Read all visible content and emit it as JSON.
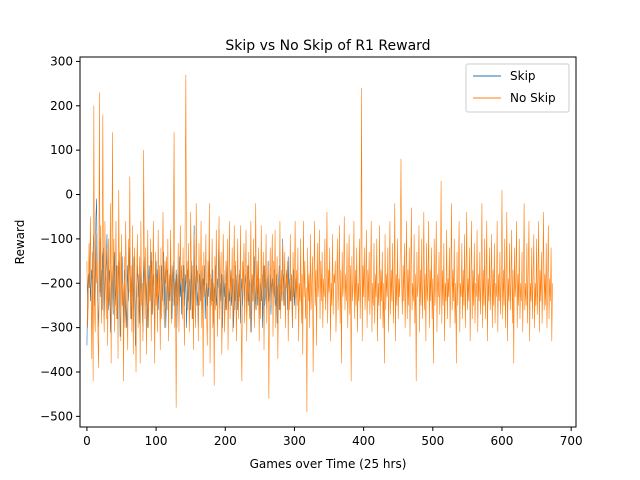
{
  "chart_data": {
    "type": "line",
    "title": "Skip vs No Skip of R1 Reward",
    "xlabel": "Games over Time (25 hrs)",
    "ylabel": "Reward",
    "xlim": [
      -10,
      707
    ],
    "ylim": [
      -524,
      310
    ],
    "xticks": [
      0,
      100,
      200,
      300,
      400,
      500,
      600,
      700
    ],
    "yticks": [
      -500,
      -400,
      -300,
      -200,
      -100,
      0,
      100,
      200,
      300
    ],
    "grid": false,
    "legend_position": "top-right",
    "series": [
      {
        "name": "Skip",
        "color": "#1f77b4",
        "x_start": 0,
        "values": [
          -340,
          -220,
          -180,
          -210,
          -150,
          -240,
          -200,
          -170,
          -230,
          -120,
          -90,
          -250,
          -180,
          -50,
          -10,
          -200,
          -260,
          -300,
          -150,
          -100,
          -230,
          -170,
          -260,
          -140,
          -120,
          -280,
          -200,
          -180,
          -150,
          -90,
          -220,
          -260,
          -170,
          -200,
          -310,
          -240,
          -160,
          -220,
          -270,
          -190,
          -130,
          -250,
          -210,
          -160,
          -280,
          -230,
          -150,
          -200,
          -320,
          -260,
          -180,
          -140,
          -220,
          -290,
          -200,
          -170,
          -250,
          -300,
          -210,
          -160,
          -240,
          -190,
          -120,
          -230,
          -280,
          -200,
          -170,
          -260,
          -140,
          -210,
          -340,
          -250,
          -200,
          -160,
          -230,
          -180,
          -290,
          -220,
          -150,
          -200,
          -260,
          -310,
          -190,
          -140,
          -230,
          -170,
          -250,
          -200,
          -300,
          -220,
          -160,
          -240,
          -190,
          -130,
          -270,
          -210,
          -180,
          -250,
          -300,
          -200,
          -150,
          -230,
          -170,
          -260,
          -210,
          -190,
          -290,
          -220,
          -160,
          -240,
          -200,
          -130,
          -250,
          -180,
          -300,
          -230,
          -170,
          -210,
          -260,
          -190,
          -240,
          -160,
          -220,
          -280,
          -200,
          -150,
          -250,
          -190,
          -230,
          -170,
          -300,
          -210,
          -180,
          -260,
          -140,
          -230,
          -200,
          -270,
          -190,
          -220,
          -160,
          -250,
          -210,
          -180,
          -300,
          -230,
          -170,
          -240,
          -200,
          -190,
          -260,
          -150,
          -230,
          -280,
          -210,
          -70,
          -240,
          -190,
          -160,
          -250,
          -220,
          -300,
          -200,
          -180,
          -240,
          -170,
          -260,
          -210,
          -190,
          -230,
          -160,
          -280,
          -220,
          -200,
          -250,
          -180,
          -230,
          -130,
          -260,
          -210,
          -190,
          -240,
          -170,
          -290,
          -220,
          -200,
          -160,
          -250,
          -230,
          -190,
          -210,
          -80,
          -260,
          -200,
          -240,
          -180,
          -300,
          -220,
          -170,
          -230,
          -200,
          -260,
          -190,
          -150,
          -280,
          -210,
          -240,
          -200,
          -170,
          -250,
          -220,
          -190,
          -300,
          -230,
          -160,
          -240,
          -210,
          -180,
          -260,
          -200,
          -230,
          -170,
          -290,
          -220,
          -190,
          -250,
          -210,
          -130,
          -240,
          -200,
          -180,
          -270,
          -230,
          -160,
          -250,
          -210,
          -190,
          -310,
          -220,
          -180,
          -240,
          -200,
          -140,
          -260,
          -230,
          -190,
          -210,
          -250,
          -170,
          -280,
          -220,
          -200,
          -240,
          -180,
          -300,
          -210,
          -160,
          -250,
          -230,
          -190,
          -260,
          -200,
          -150,
          -240,
          -220,
          -180,
          -270,
          -210,
          -190,
          -240,
          -200,
          -170,
          -250,
          -230,
          -180,
          -290,
          -210,
          -200,
          -160,
          -260,
          -230,
          -190,
          -240,
          -100,
          -210,
          -180,
          -250,
          -220,
          -200,
          -170,
          -260,
          -140,
          -230,
          -190,
          -240,
          -200,
          -180,
          -300,
          -220,
          -170,
          -250,
          -210,
          -190
        ]
      },
      {
        "name": "No Skip",
        "color": "#ff7f0e",
        "x_start": 0,
        "values": [
          -150,
          -300,
          -240,
          -110,
          -210,
          -50,
          -190,
          -370,
          -130,
          -420,
          200,
          -260,
          -310,
          -90,
          -200,
          -150,
          -330,
          -390,
          230,
          -220,
          -70,
          -290,
          -180,
          180,
          -240,
          -310,
          -60,
          -190,
          -280,
          -120,
          -340,
          -100,
          -250,
          -200,
          -20,
          -380,
          -150,
          140,
          -260,
          -100,
          -310,
          -210,
          -60,
          -280,
          -160,
          -370,
          10,
          -220,
          -130,
          -330,
          -90,
          -250,
          -200,
          -420,
          -140,
          -300,
          -60,
          -180,
          -240,
          -350,
          -100,
          -220,
          40,
          -280,
          -160,
          -310,
          -70,
          -360,
          -200,
          -120,
          -260,
          -400,
          -180,
          -90,
          -300,
          -230,
          -140,
          -380,
          -60,
          -250,
          -200,
          -330,
          100,
          -170,
          -280,
          -120,
          -360,
          -220,
          -80,
          -300,
          -190,
          -240,
          -100,
          -330,
          -150,
          -270,
          -60,
          -210,
          -380,
          -130,
          -250,
          -180,
          -310,
          -80,
          -230,
          -160,
          -350,
          -120,
          -280,
          -200,
          -40,
          -240,
          -300,
          -150,
          -200,
          -140,
          -260,
          -100,
          -330,
          -180,
          -220,
          -80,
          -290,
          -160,
          -240,
          -120,
          140,
          -300,
          -200,
          -480,
          -180,
          -250,
          -110,
          -310,
          -230,
          -70,
          -200,
          -160,
          -280,
          -120,
          -250,
          -340,
          -60,
          270,
          -200,
          -150,
          -260,
          -110,
          -310,
          -230,
          -40,
          -190,
          -280,
          -160,
          -350,
          -90,
          -240,
          -300,
          -20,
          -200,
          -170,
          -330,
          -110,
          -250,
          -220,
          -60,
          -300,
          -160,
          -410,
          -130,
          -230,
          -200,
          -90,
          -270,
          -340,
          -150,
          -210,
          -20,
          -380,
          -180,
          -250,
          -100,
          -300,
          -200,
          -430,
          -140,
          -260,
          -80,
          -220,
          -320,
          -160,
          -50,
          -280,
          -200,
          -130,
          -360,
          -240,
          -90,
          -190,
          -310,
          -230,
          -150,
          -260,
          -100,
          -350,
          -200,
          -60,
          -280,
          -170,
          -230,
          -120,
          -310,
          -200,
          -70,
          -260,
          -150,
          -330,
          -210,
          -100,
          -280,
          -180,
          -240,
          -70,
          -300,
          -420,
          -150,
          -220,
          -110,
          -290,
          -200,
          -80,
          -330,
          -160,
          -240,
          -130,
          -280,
          -200,
          -60,
          -310,
          -180,
          -240,
          -100,
          -300,
          -200,
          -20,
          -260,
          -150,
          -230,
          -120,
          -330,
          -190,
          -280,
          -70,
          -240,
          -200,
          -130,
          -350,
          -160,
          -210,
          -90,
          -290,
          -200,
          -160,
          -460,
          -220,
          -120,
          -250,
          -180,
          -90,
          -320,
          -150,
          -230,
          -80,
          -300,
          -210,
          -140,
          -370,
          -200,
          -260,
          -60,
          -280,
          -170,
          -220,
          -110,
          -250,
          -200,
          -130,
          -300,
          -180,
          -210,
          -150,
          -330,
          -200,
          -260,
          -90,
          -240,
          -180,
          -300,
          -130,
          -230,
          -200,
          -60,
          -280,
          -170,
          -250,
          -120,
          -330,
          -200,
          -240,
          -100,
          -290,
          -180,
          -360,
          -60,
          -230,
          -150,
          -280,
          -210,
          -490,
          -120,
          -240,
          -180,
          -300,
          -90,
          -260,
          -200,
          -140,
          -400,
          -220,
          -60,
          -250,
          -170,
          -340,
          -110,
          -230,
          -200,
          -80,
          -280,
          -150,
          -240,
          -130,
          -300,
          -190,
          -230,
          -100,
          -260,
          -200,
          -40,
          -290,
          -170,
          -220,
          -120,
          -330,
          -200,
          -250,
          -90,
          -270,
          -180,
          -200,
          -150,
          -310,
          -230,
          -100,
          -260,
          -200,
          -70,
          -290,
          -170,
          -380,
          -130,
          -230,
          -200,
          -50,
          -260,
          -180,
          -240,
          -110,
          -300,
          -200,
          -90,
          -270,
          -160,
          -420,
          -140,
          -240,
          -200,
          -60,
          -280,
          -170,
          -250,
          -120,
          -310,
          -200,
          -240,
          -100,
          -280,
          -190,
          240,
          -330,
          -160,
          -230,
          -120,
          -260,
          -200,
          -80,
          -300,
          -170,
          -240,
          -130,
          -270,
          -190,
          -60,
          -310,
          -200,
          -250,
          -110,
          -290,
          -180,
          -230,
          -100,
          -330,
          -200,
          -250,
          -70,
          -280,
          -170,
          -240,
          -130,
          -300,
          -200,
          -380,
          -90,
          -260,
          -180,
          -230,
          -120,
          -310,
          -200,
          -60,
          -270,
          -170,
          -240,
          -110,
          -290,
          -200,
          -20,
          -330,
          -180,
          -250,
          -100,
          -280,
          -190,
          -230,
          -130,
          80,
          -200,
          -270,
          -160,
          -240,
          -110,
          -300,
          -200,
          -60,
          -280,
          -170,
          -250,
          -120,
          -320,
          -190,
          -30,
          -260,
          -200,
          -240,
          -90,
          -290,
          -180,
          -420,
          -130,
          -230,
          -200,
          -70,
          -310,
          -170,
          -250,
          -100,
          -280,
          -200,
          -40,
          -260,
          -180,
          -330,
          -110,
          -240,
          -200,
          -60,
          -300,
          -170,
          -240,
          -120,
          -280,
          -190,
          -380,
          -100,
          -250,
          -200,
          -60,
          -310,
          -180,
          -230,
          -130,
          -270,
          -200,
          30,
          -290,
          -170,
          -250,
          -110,
          -330,
          -200,
          -240,
          -80,
          -280,
          -190,
          -230,
          -120,
          -300,
          -200,
          -20,
          -260,
          -170,
          -240,
          -100,
          -290,
          -200,
          -380,
          -130,
          -250,
          -180,
          -60,
          -310,
          -200,
          -230,
          -110,
          -280,
          -170,
          -250,
          -90,
          -300,
          -200,
          -40,
          -260,
          -190,
          -240,
          -120,
          -330,
          -200,
          -60,
          -280,
          -170,
          -250,
          -110,
          -290,
          -200,
          -230,
          -80,
          -310,
          -180,
          -240,
          -130,
          -270,
          -200,
          -20,
          -300,
          -170,
          -250,
          -100,
          -280,
          -200,
          -60,
          -330,
          -190,
          -240,
          -120,
          -260,
          -200,
          -90,
          -300,
          -170,
          -250,
          -110,
          -290,
          -200,
          -230,
          -60,
          -310,
          -180,
          -240,
          -130,
          -270,
          -200,
          10,
          -280,
          -170,
          -250,
          -100,
          -300,
          -200,
          -40,
          -330,
          -190,
          -240,
          -110,
          -260,
          -200,
          -80,
          -290,
          -170,
          -380,
          -120,
          -230,
          -200,
          -60,
          -300,
          -180,
          -250,
          -100,
          -280,
          -200,
          -240,
          -130,
          -310,
          -190,
          -20,
          -260,
          -200,
          -250,
          -110,
          -290,
          -170,
          -60,
          -330,
          -200,
          -240,
          -120,
          -280,
          -180,
          -90,
          -300,
          -200,
          -250,
          -100,
          -270,
          -190,
          -60,
          -310,
          -170,
          -240,
          -130,
          -290,
          -200,
          -40,
          -260,
          -180,
          -250,
          -110,
          -300,
          -200,
          -70,
          -280,
          -190,
          -240,
          -120,
          -330,
          -200
        ]
      }
    ]
  }
}
